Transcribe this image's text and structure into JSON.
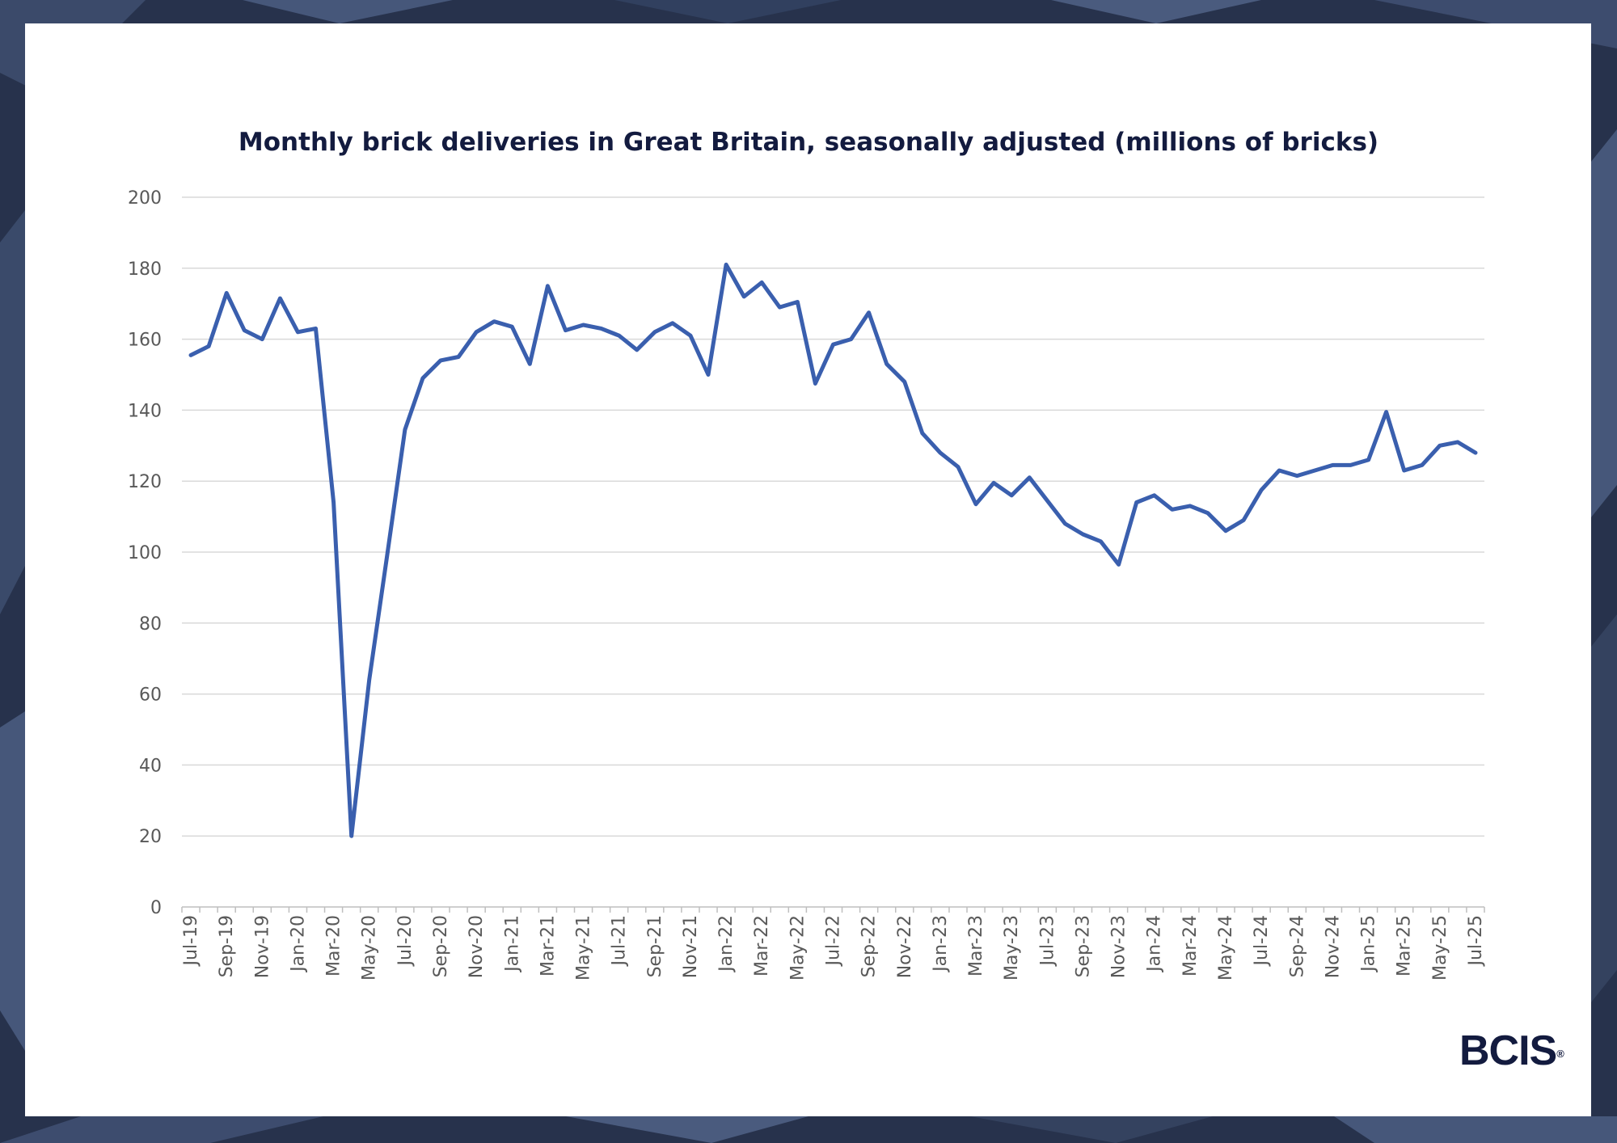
{
  "brand": {
    "logo_text": "BCIS",
    "logo_mark": "®"
  },
  "chart_data": {
    "type": "line",
    "title": "Monthly brick deliveries in Great Britain, seasonally adjusted (millions of bricks)",
    "xlabel": "",
    "ylabel": "",
    "ylim": [
      0,
      200
    ],
    "yticks": [
      0,
      20,
      40,
      60,
      80,
      100,
      120,
      140,
      160,
      180,
      200
    ],
    "grid": true,
    "legend": "none",
    "x": [
      "Jul-19",
      "Aug-19",
      "Sep-19",
      "Oct-19",
      "Nov-19",
      "Dec-19",
      "Jan-20",
      "Feb-20",
      "Mar-20",
      "Apr-20",
      "May-20",
      "Jun-20",
      "Jul-20",
      "Aug-20",
      "Sep-20",
      "Oct-20",
      "Nov-20",
      "Dec-20",
      "Jan-21",
      "Feb-21",
      "Mar-21",
      "Apr-21",
      "May-21",
      "Jun-21",
      "Jul-21",
      "Aug-21",
      "Sep-21",
      "Oct-21",
      "Nov-21",
      "Dec-21",
      "Jan-22",
      "Feb-22",
      "Mar-22",
      "Apr-22",
      "May-22",
      "Jun-22",
      "Jul-22",
      "Aug-22",
      "Sep-22",
      "Oct-22",
      "Nov-22",
      "Dec-22",
      "Jan-23",
      "Feb-23",
      "Mar-23",
      "Apr-23",
      "May-23",
      "Jun-23",
      "Jul-23",
      "Aug-23",
      "Sep-23",
      "Oct-23",
      "Nov-23",
      "Dec-23",
      "Jan-24",
      "Feb-24",
      "Mar-24",
      "Apr-24",
      "May-24",
      "Jun-24",
      "Jul-24",
      "Aug-24",
      "Sep-24",
      "Oct-24",
      "Nov-24",
      "Dec-24",
      "Jan-25",
      "Feb-25",
      "Mar-25",
      "Apr-25",
      "May-25",
      "Jun-25",
      "Jul-25"
    ],
    "x_tick_labels": [
      "Jul-19",
      "Sep-19",
      "Nov-19",
      "Jan-20",
      "Mar-20",
      "May-20",
      "Jul-20",
      "Sep-20",
      "Nov-20",
      "Jan-21",
      "Mar-21",
      "May-21",
      "Jul-21",
      "Sep-21",
      "Nov-21",
      "Jan-22",
      "Mar-22",
      "May-22",
      "Jul-22",
      "Sep-22",
      "Nov-22",
      "Jan-23",
      "Mar-23",
      "May-23",
      "Jul-23",
      "Sep-23",
      "Nov-23",
      "Jan-24",
      "Mar-24",
      "May-24",
      "Jul-24",
      "Sep-24",
      "Nov-24",
      "Jan-25",
      "Mar-25",
      "May-25",
      "Jul-25"
    ],
    "series": [
      {
        "color": "#3a5fae",
        "values": [
          155.5,
          158,
          173,
          162.5,
          160,
          171.5,
          162,
          163,
          114,
          20,
          64,
          99,
          134.5,
          149,
          154,
          155,
          162,
          165,
          163.5,
          153,
          175,
          162.5,
          164,
          163,
          161,
          157,
          162,
          164.5,
          161,
          150,
          181,
          172,
          176,
          169,
          170.5,
          147.5,
          158.5,
          160,
          167.5,
          153,
          148,
          133.5,
          128,
          124,
          113.5,
          119.5,
          116,
          121,
          114.5,
          108,
          105,
          103,
          96.5,
          114,
          116,
          112,
          113,
          111,
          106,
          109,
          117.5,
          123,
          121.5,
          123,
          124.5,
          124.5,
          126,
          139.5,
          123,
          124.5,
          130,
          131,
          128
        ]
      }
    ]
  }
}
